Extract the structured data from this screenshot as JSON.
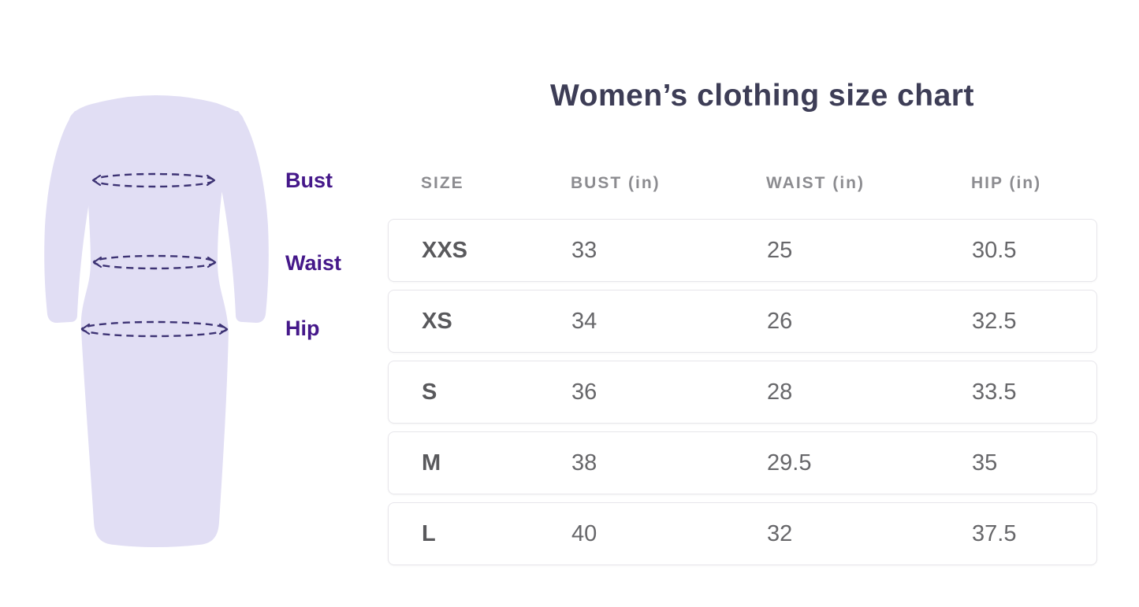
{
  "title": "Women’s clothing size chart",
  "figure": {
    "type": "dress-measurement-illustration",
    "labels": [
      {
        "id": "bust",
        "text": "Bust"
      },
      {
        "id": "waist",
        "text": "Waist"
      },
      {
        "id": "hip",
        "text": "Hip"
      }
    ]
  },
  "theme": {
    "dress_color": "#e1def4",
    "line_color": "#3d3374",
    "label_color": "#45188a",
    "title_color": "#3d3d56",
    "header_color": "#8c8c90",
    "size_color": "#59595c",
    "value_color": "#67676a",
    "row_border": "#e7e6eb"
  },
  "chart_data": {
    "type": "table",
    "title": "Women’s clothing size chart",
    "columns": [
      "SIZE",
      "BUST (in)",
      "WAIST (in)",
      "HIP (in)"
    ],
    "rows": [
      [
        "XXS",
        "33",
        "25",
        "30.5"
      ],
      [
        "XS",
        "34",
        "26",
        "32.5"
      ],
      [
        "S",
        "36",
        "28",
        "33.5"
      ],
      [
        "M",
        "38",
        "29.5",
        "35"
      ],
      [
        "L",
        "40",
        "32",
        "37.5"
      ]
    ],
    "units": "inches",
    "annotations": [
      "Bust",
      "Waist",
      "Hip"
    ]
  }
}
